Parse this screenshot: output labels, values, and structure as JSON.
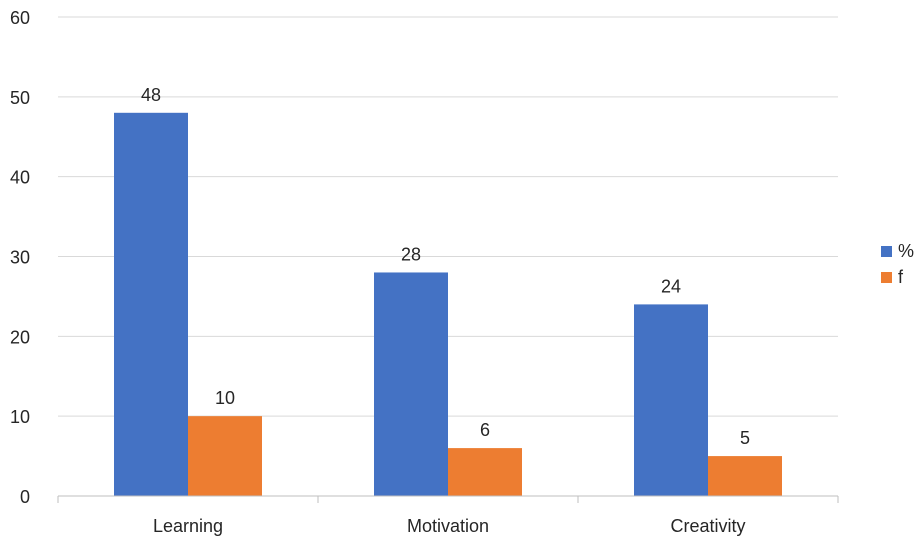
{
  "chart_data": {
    "type": "bar",
    "categories": [
      "Learning",
      "Motivation",
      "Creativity"
    ],
    "series": [
      {
        "name": "%",
        "values": [
          48,
          28,
          24
        ],
        "color": "#4472C4"
      },
      {
        "name": "f",
        "values": [
          10,
          6,
          5
        ],
        "color": "#ED7D31"
      }
    ],
    "ylim": [
      0,
      60
    ],
    "yticks": [
      0,
      10,
      20,
      30,
      40,
      50,
      60
    ],
    "grid": true,
    "legend_position": "right",
    "data_labels": true
  }
}
